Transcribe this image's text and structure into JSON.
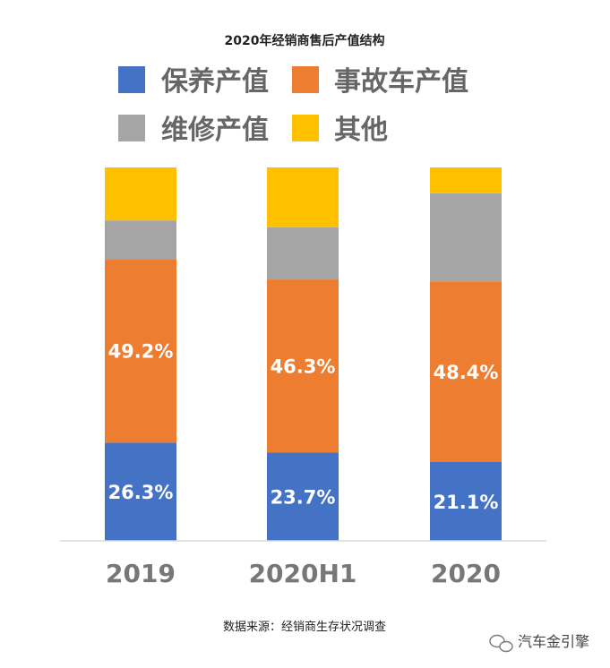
{
  "chart_data": {
    "type": "bar",
    "stacked": true,
    "percent_stacked": true,
    "title": "2020年经销商售后产值结构",
    "categories": [
      "2019",
      "2020H1",
      "2020"
    ],
    "series": [
      {
        "name": "保养产值",
        "color": "#4472C4",
        "values": [
          26.3,
          23.7,
          21.1
        ],
        "labels": [
          "26.3%",
          "23.7%",
          "21.1%"
        ]
      },
      {
        "name": "事故车产值",
        "color": "#ED7D31",
        "values": [
          49.2,
          46.3,
          48.4
        ],
        "labels": [
          "49.2%",
          "46.3%",
          "48.4%"
        ]
      },
      {
        "name": "维修产值",
        "color": "#A5A5A5",
        "values": [
          10.3,
          14.0,
          23.6
        ],
        "labels": [
          "",
          "",
          ""
        ]
      },
      {
        "name": "其他",
        "color": "#FFC000",
        "values": [
          14.2,
          16.0,
          6.9
        ],
        "labels": [
          "",
          "",
          ""
        ]
      }
    ],
    "ylim": [
      0,
      100
    ],
    "legend_position": "top",
    "grid": false
  },
  "footer": {
    "source": "数据来源：经销商生存状况调查",
    "watermark": "汽车金引擎"
  }
}
